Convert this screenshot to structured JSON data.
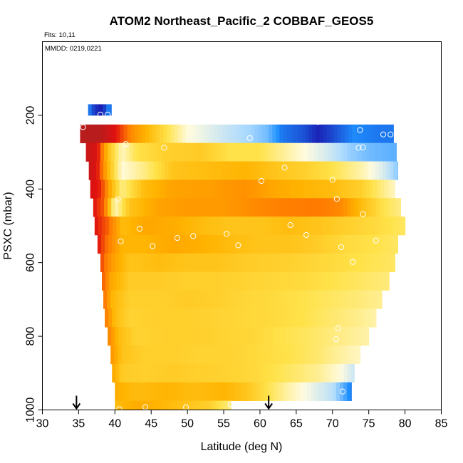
{
  "chart_data": {
    "type": "heatmap",
    "title": "ATOM2 Northeast_Pacific_2 COBBAF_GEOS5",
    "annotations": [
      "Flts: 10,11",
      "MMDD: 0219,0221"
    ],
    "xlabel": "Latitude (deg N)",
    "ylabel": "PSXC (mbar)",
    "xlim": [
      30,
      85
    ],
    "ylim": [
      1000,
      0
    ],
    "y_reversed": true,
    "xticks": [
      30,
      35,
      40,
      45,
      50,
      55,
      60,
      65,
      70,
      75,
      80,
      85
    ],
    "yticks": [
      200,
      400,
      600,
      800,
      1000
    ],
    "grid": false,
    "legend": "none",
    "colorscale": [
      "#1a1ab0",
      "#1e90ff",
      "#a8d8ff",
      "#fffbe0",
      "#ffe24a",
      "#ffb300",
      "#ff7a00",
      "#e01010",
      "#b81c1c"
    ],
    "layers": [
      {
        "p": [
          170,
          200
        ],
        "lat_min": 36.3,
        "lat_max": 39.5,
        "values": [
          [
            36.3,
            0.12
          ],
          [
            37.0,
            0.05
          ],
          [
            37.5,
            0.02
          ],
          [
            38.3,
            0.0
          ],
          [
            39.0,
            0.1
          ]
        ]
      },
      {
        "p": [
          225,
          275
        ],
        "lat_min": 35.2,
        "lat_max": 78.4,
        "values": [
          [
            35.2,
            1.0
          ],
          [
            38.0,
            1.0
          ],
          [
            40.0,
            0.88
          ],
          [
            42.5,
            0.7
          ],
          [
            46.0,
            0.55
          ],
          [
            50.0,
            0.38
          ],
          [
            55.0,
            0.3
          ],
          [
            59.0,
            0.24
          ],
          [
            61.0,
            0.2
          ],
          [
            63.0,
            0.1
          ],
          [
            66.0,
            0.06
          ],
          [
            68.0,
            0.01
          ],
          [
            70.0,
            0.05
          ],
          [
            73.0,
            0.12
          ],
          [
            76.0,
            0.1
          ],
          [
            78.4,
            0.1
          ]
        ]
      },
      {
        "p": [
          275,
          325
        ],
        "lat_min": 36.0,
        "lat_max": 78.8,
        "values": [
          [
            36.0,
            0.95
          ],
          [
            37.5,
            0.9
          ],
          [
            39.0,
            0.6
          ],
          [
            41.0,
            0.4
          ],
          [
            43.0,
            0.5
          ],
          [
            47.0,
            0.55
          ],
          [
            52.0,
            0.56
          ],
          [
            56.0,
            0.5
          ],
          [
            60.0,
            0.5
          ],
          [
            65.0,
            0.4
          ],
          [
            69.0,
            0.32
          ],
          [
            72.0,
            0.24
          ],
          [
            75.0,
            0.2
          ],
          [
            78.8,
            0.18
          ]
        ]
      },
      {
        "p": [
          325,
          375
        ],
        "lat_min": 36.4,
        "lat_max": 79.0,
        "values": [
          [
            36.4,
            0.95
          ],
          [
            37.5,
            0.88
          ],
          [
            39.0,
            0.62
          ],
          [
            41.0,
            0.38
          ],
          [
            44.0,
            0.45
          ],
          [
            48.0,
            0.58
          ],
          [
            53.0,
            0.6
          ],
          [
            58.0,
            0.62
          ],
          [
            62.0,
            0.58
          ],
          [
            66.0,
            0.55
          ],
          [
            70.0,
            0.5
          ],
          [
            74.0,
            0.42
          ],
          [
            77.0,
            0.32
          ],
          [
            79.0,
            0.22
          ]
        ]
      },
      {
        "p": [
          375,
          425
        ],
        "lat_min": 36.6,
        "lat_max": 78.6,
        "values": [
          [
            36.6,
            0.9
          ],
          [
            38.0,
            0.85
          ],
          [
            39.5,
            0.62
          ],
          [
            41.0,
            0.45
          ],
          [
            44.0,
            0.6
          ],
          [
            48.0,
            0.66
          ],
          [
            53.0,
            0.67
          ],
          [
            58.0,
            0.7
          ],
          [
            62.0,
            0.65
          ],
          [
            66.0,
            0.62
          ],
          [
            70.0,
            0.6
          ],
          [
            74.0,
            0.55
          ],
          [
            77.0,
            0.45
          ],
          [
            78.6,
            0.4
          ]
        ]
      },
      {
        "p": [
          425,
          475
        ],
        "lat_min": 37.0,
        "lat_max": 79.4,
        "values": [
          [
            37.0,
            0.88
          ],
          [
            38.5,
            0.78
          ],
          [
            40.0,
            0.4
          ],
          [
            42.0,
            0.58
          ],
          [
            46.0,
            0.66
          ],
          [
            50.0,
            0.68
          ],
          [
            55.0,
            0.68
          ],
          [
            60.0,
            0.72
          ],
          [
            64.0,
            0.74
          ],
          [
            68.0,
            0.75
          ],
          [
            71.0,
            0.72
          ],
          [
            74.0,
            0.6
          ],
          [
            77.0,
            0.5
          ],
          [
            79.4,
            0.45
          ]
        ]
      },
      {
        "p": [
          475,
          525
        ],
        "lat_min": 37.2,
        "lat_max": 80.0,
        "values": [
          [
            37.2,
            0.88
          ],
          [
            39.0,
            0.78
          ],
          [
            41.0,
            0.6
          ],
          [
            44.0,
            0.65
          ],
          [
            48.0,
            0.64
          ],
          [
            52.0,
            0.6
          ],
          [
            56.0,
            0.58
          ],
          [
            60.0,
            0.58
          ],
          [
            64.0,
            0.6
          ],
          [
            68.0,
            0.58
          ],
          [
            72.0,
            0.55
          ],
          [
            76.0,
            0.52
          ],
          [
            80.0,
            0.48
          ]
        ]
      },
      {
        "p": [
          525,
          575
        ],
        "lat_min": 37.6,
        "lat_max": 79.0,
        "values": [
          [
            37.6,
            0.88
          ],
          [
            39.0,
            0.75
          ],
          [
            41.0,
            0.62
          ],
          [
            44.0,
            0.62
          ],
          [
            48.0,
            0.65
          ],
          [
            52.0,
            0.63
          ],
          [
            56.0,
            0.6
          ],
          [
            60.0,
            0.58
          ],
          [
            64.0,
            0.58
          ],
          [
            68.0,
            0.56
          ],
          [
            72.0,
            0.52
          ],
          [
            76.0,
            0.5
          ],
          [
            79.0,
            0.48
          ]
        ]
      },
      {
        "p": [
          575,
          625
        ],
        "lat_min": 38.0,
        "lat_max": 78.6,
        "values": [
          [
            38.0,
            0.82
          ],
          [
            39.5,
            0.68
          ],
          [
            42.0,
            0.58
          ],
          [
            46.0,
            0.6
          ],
          [
            50.0,
            0.58
          ],
          [
            54.0,
            0.58
          ],
          [
            58.0,
            0.56
          ],
          [
            62.0,
            0.55
          ],
          [
            66.0,
            0.54
          ],
          [
            70.0,
            0.52
          ],
          [
            74.0,
            0.5
          ],
          [
            78.6,
            0.48
          ]
        ]
      },
      {
        "p": [
          625,
          675
        ],
        "lat_min": 38.2,
        "lat_max": 77.8,
        "values": [
          [
            38.2,
            0.8
          ],
          [
            39.5,
            0.65
          ],
          [
            42.0,
            0.56
          ],
          [
            46.0,
            0.56
          ],
          [
            50.0,
            0.55
          ],
          [
            54.0,
            0.55
          ],
          [
            58.0,
            0.54
          ],
          [
            62.0,
            0.53
          ],
          [
            66.0,
            0.52
          ],
          [
            70.0,
            0.5
          ],
          [
            74.0,
            0.48
          ],
          [
            77.8,
            0.46
          ]
        ]
      },
      {
        "p": [
          675,
          725
        ],
        "lat_min": 38.4,
        "lat_max": 76.8,
        "values": [
          [
            38.4,
            0.78
          ],
          [
            39.5,
            0.62
          ],
          [
            42.0,
            0.55
          ],
          [
            46.0,
            0.55
          ],
          [
            50.0,
            0.56
          ],
          [
            54.0,
            0.55
          ],
          [
            58.0,
            0.53
          ],
          [
            62.0,
            0.52
          ],
          [
            66.0,
            0.5
          ],
          [
            70.0,
            0.48
          ],
          [
            74.0,
            0.46
          ],
          [
            76.8,
            0.44
          ]
        ]
      },
      {
        "p": [
          725,
          775
        ],
        "lat_min": 38.6,
        "lat_max": 76.0,
        "values": [
          [
            38.6,
            0.76
          ],
          [
            40.0,
            0.6
          ],
          [
            42.0,
            0.54
          ],
          [
            46.0,
            0.55
          ],
          [
            50.0,
            0.55
          ],
          [
            54.0,
            0.54
          ],
          [
            58.0,
            0.53
          ],
          [
            62.0,
            0.52
          ],
          [
            66.0,
            0.5
          ],
          [
            70.0,
            0.47
          ],
          [
            73.0,
            0.45
          ],
          [
            76.0,
            0.42
          ]
        ]
      },
      {
        "p": [
          775,
          825
        ],
        "lat_min": 39.0,
        "lat_max": 75.0,
        "values": [
          [
            39.0,
            0.74
          ],
          [
            40.5,
            0.6
          ],
          [
            43.0,
            0.54
          ],
          [
            47.0,
            0.55
          ],
          [
            51.0,
            0.55
          ],
          [
            55.0,
            0.54
          ],
          [
            59.0,
            0.53
          ],
          [
            63.0,
            0.5
          ],
          [
            67.0,
            0.48
          ],
          [
            71.0,
            0.45
          ],
          [
            75.0,
            0.42
          ]
        ]
      },
      {
        "p": [
          825,
          875
        ],
        "lat_min": 39.4,
        "lat_max": 73.8,
        "values": [
          [
            39.4,
            0.7
          ],
          [
            41.0,
            0.58
          ],
          [
            44.0,
            0.55
          ],
          [
            48.0,
            0.55
          ],
          [
            52.0,
            0.54
          ],
          [
            56.0,
            0.54
          ],
          [
            60.0,
            0.52
          ],
          [
            64.0,
            0.5
          ],
          [
            68.0,
            0.47
          ],
          [
            71.0,
            0.43
          ],
          [
            73.8,
            0.4
          ]
        ]
      },
      {
        "p": [
          875,
          925
        ],
        "lat_min": 39.6,
        "lat_max": 73.0,
        "values": [
          [
            39.6,
            0.66
          ],
          [
            41.0,
            0.56
          ],
          [
            44.0,
            0.55
          ],
          [
            48.0,
            0.56
          ],
          [
            52.0,
            0.55
          ],
          [
            56.0,
            0.54
          ],
          [
            60.0,
            0.52
          ],
          [
            64.0,
            0.48
          ],
          [
            68.0,
            0.44
          ],
          [
            71.0,
            0.38
          ],
          [
            73.0,
            0.3
          ]
        ]
      },
      {
        "p": [
          925,
          975
        ],
        "lat_min": 40.0,
        "lat_max": 72.6,
        "values": [
          [
            40.0,
            0.64
          ],
          [
            43.0,
            0.6
          ],
          [
            47.0,
            0.62
          ],
          [
            51.0,
            0.6
          ],
          [
            55.0,
            0.62
          ],
          [
            58.0,
            0.58
          ],
          [
            61.0,
            0.5
          ],
          [
            64.0,
            0.42
          ],
          [
            67.0,
            0.35
          ],
          [
            70.0,
            0.28
          ],
          [
            72.6,
            0.1
          ]
        ]
      },
      {
        "p": [
          975,
          1000
        ],
        "lat_min": 40.0,
        "lat_max": 56.0,
        "values": [
          [
            40.0,
            0.6
          ],
          [
            43.0,
            0.64
          ],
          [
            46.0,
            0.62
          ],
          [
            50.0,
            0.58
          ],
          [
            53.0,
            0.55
          ],
          [
            56.0,
            0.45
          ]
        ]
      }
    ],
    "observations": [
      {
        "lat": 35.6,
        "p": 232
      },
      {
        "lat": 38.0,
        "p": 198
      },
      {
        "lat": 39.0,
        "p": 198
      },
      {
        "lat": 41.5,
        "p": 278
      },
      {
        "lat": 46.8,
        "p": 288
      },
      {
        "lat": 58.6,
        "p": 262
      },
      {
        "lat": 68.0,
        "p": 218
      },
      {
        "lat": 73.8,
        "p": 240
      },
      {
        "lat": 77.0,
        "p": 252
      },
      {
        "lat": 78.0,
        "p": 252
      },
      {
        "lat": 73.6,
        "p": 288
      },
      {
        "lat": 74.2,
        "p": 287
      },
      {
        "lat": 63.4,
        "p": 342
      },
      {
        "lat": 60.2,
        "p": 378
      },
      {
        "lat": 70.0,
        "p": 375
      },
      {
        "lat": 40.4,
        "p": 428
      },
      {
        "lat": 70.6,
        "p": 427
      },
      {
        "lat": 74.2,
        "p": 468
      },
      {
        "lat": 43.4,
        "p": 508
      },
      {
        "lat": 64.2,
        "p": 498
      },
      {
        "lat": 66.4,
        "p": 525
      },
      {
        "lat": 55.4,
        "p": 522
      },
      {
        "lat": 50.8,
        "p": 528
      },
      {
        "lat": 48.6,
        "p": 533
      },
      {
        "lat": 40.8,
        "p": 542
      },
      {
        "lat": 45.2,
        "p": 555
      },
      {
        "lat": 57.0,
        "p": 553
      },
      {
        "lat": 71.2,
        "p": 558
      },
      {
        "lat": 76.0,
        "p": 540
      },
      {
        "lat": 72.8,
        "p": 598
      },
      {
        "lat": 70.8,
        "p": 778
      },
      {
        "lat": 70.5,
        "p": 808
      },
      {
        "lat": 71.4,
        "p": 950
      },
      {
        "lat": 40.6,
        "p": 998
      },
      {
        "lat": 44.2,
        "p": 992
      },
      {
        "lat": 49.8,
        "p": 993
      },
      {
        "lat": 56.0,
        "p": 985
      }
    ],
    "markers": [
      {
        "type": "arrow-down",
        "lat": 34.7
      },
      {
        "type": "arrow-down",
        "lat": 61.2
      }
    ]
  }
}
